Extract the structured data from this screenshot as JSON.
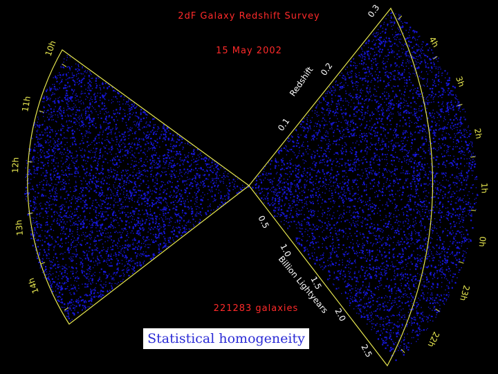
{
  "title": "2dF Galaxy Redshift Survey",
  "date": "15 May 2002",
  "galaxy_count": "221283 galaxies",
  "caption": "Statistical homogeneity",
  "redshift_axis": {
    "label": "Redshift",
    "ticks": [
      "0.1",
      "0.2",
      "0.3"
    ]
  },
  "distance_axis": {
    "label": "Billion Lightyears",
    "ticks": [
      "0.5",
      "1.0",
      "1.5",
      "2.0",
      "2.5"
    ]
  },
  "ra_ticks_right": [
    "4h",
    "3h",
    "2h",
    "1h",
    "0h",
    "23h",
    "22h"
  ],
  "ra_ticks_left": [
    "10h",
    "11h",
    "12h",
    "13h",
    "14h"
  ],
  "colors": {
    "background": "#000000",
    "galaxies": "#1a1aff",
    "boundary": "#e8e850",
    "title_text": "#ff2a2a",
    "caption_text": "#2b2bd6"
  }
}
